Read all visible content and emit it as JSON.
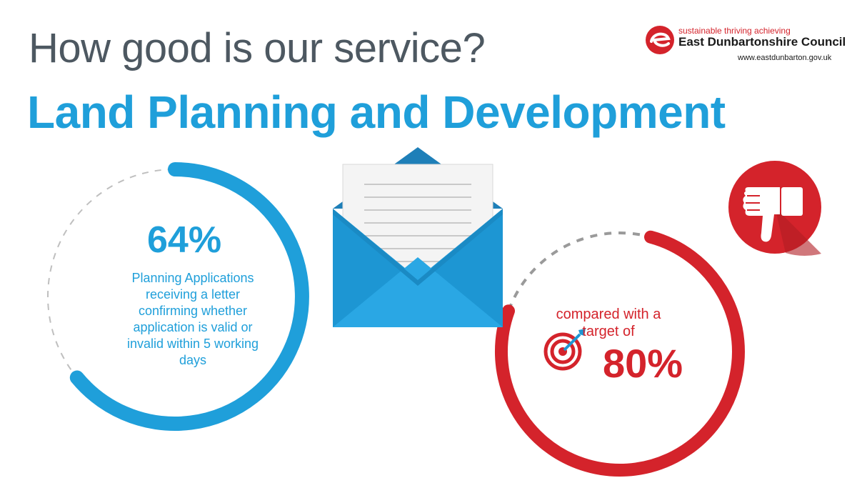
{
  "header": {
    "title": "How good is our service?",
    "subtitle": "Land Planning and Development"
  },
  "logo": {
    "tagline": "sustainable thriving achieving",
    "name": "East Dunbartonshire Council",
    "url": "www.eastdunbarton.gov.uk"
  },
  "performance": {
    "value": "64%",
    "description": "Planning Applications receiving a letter confirming whether application is valid or invalid within 5 working days",
    "progress_fraction": 0.64
  },
  "target": {
    "label": "compared with a target of",
    "value": "80%",
    "progress_fraction": 0.8
  },
  "icons": {
    "envelope": "open-envelope-letter",
    "thumb": "thumbs-down",
    "target": "target-with-arrow"
  },
  "colors": {
    "blue": "#1f9fda",
    "red": "#d4232b",
    "grey_text": "#4d5861"
  }
}
